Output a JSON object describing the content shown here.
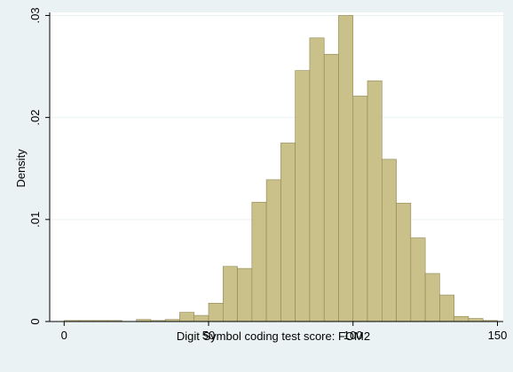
{
  "chart_data": {
    "type": "bar",
    "title": "",
    "xlabel": "Digit Symbol coding test score: FOM2",
    "ylabel": "Density",
    "xlim": [
      -5,
      152
    ],
    "ylim": [
      0,
      0.0303
    ],
    "x_ticks": [
      0,
      50,
      100,
      150
    ],
    "x_tick_labels": [
      "0",
      "50",
      "100",
      "150"
    ],
    "y_ticks": [
      0,
      0.01,
      0.02,
      0.03
    ],
    "y_tick_labels": [
      "0",
      ".01",
      ".02",
      ".03"
    ],
    "grid": "horizontal",
    "bin_width": 5,
    "bin_starts": [
      0,
      5,
      10,
      15,
      20,
      25,
      30,
      35,
      40,
      45,
      50,
      55,
      60,
      65,
      70,
      75,
      80,
      85,
      90,
      95,
      100,
      105,
      110,
      115,
      120,
      125,
      130,
      135,
      140,
      145
    ],
    "values": [
      0.0001,
      0.0001,
      0.0001,
      0.0001,
      0,
      0.0002,
      0.0001,
      0.0002,
      0.0009,
      0.0006,
      0.0018,
      0.0054,
      0.0052,
      0.0117,
      0.0139,
      0.0175,
      0.0246,
      0.0278,
      0.0262,
      0.03,
      0.0221,
      0.0236,
      0.0159,
      0.0116,
      0.0082,
      0.0047,
      0.0026,
      0.0005,
      0.0003,
      0.0001
    ],
    "colors": {
      "bar_fill": "#c9c08a",
      "bar_stroke": "#8f8650",
      "plot_bg": "#ffffff",
      "outer_bg": "#eaf2f3",
      "grid": "#eaf2f3"
    }
  }
}
